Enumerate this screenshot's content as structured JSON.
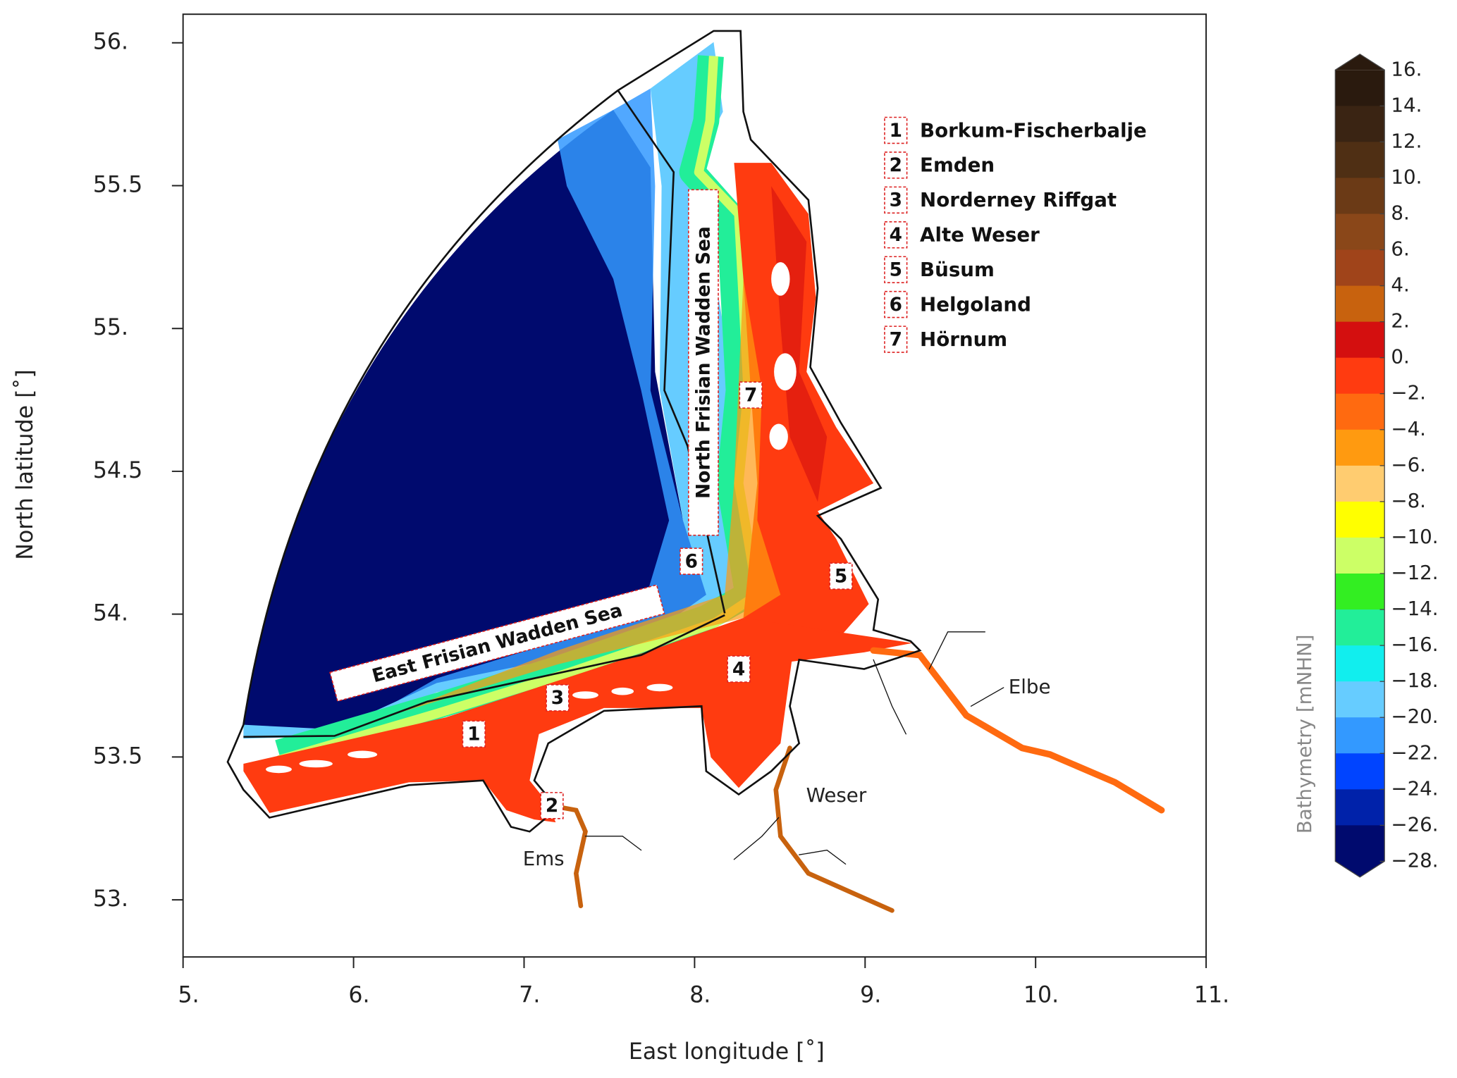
{
  "chart_data": {
    "type": "map",
    "xlabel": "East longitude [˚]",
    "ylabel": "North latitude [˚]",
    "xlim": [
      5,
      11
    ],
    "ylim": [
      52.8,
      56.1
    ],
    "xticks": [
      {
        "value": 5,
        "label": "5."
      },
      {
        "value": 6,
        "label": "6."
      },
      {
        "value": 7,
        "label": "7."
      },
      {
        "value": 8,
        "label": "8."
      },
      {
        "value": 9,
        "label": "9."
      },
      {
        "value": 10,
        "label": "10."
      },
      {
        "value": 11,
        "label": "11."
      }
    ],
    "yticks": [
      {
        "value": 53,
        "label": "53."
      },
      53.5,
      {
        "value": 54,
        "label": "54."
      },
      54.5,
      {
        "value": 55,
        "label": "55."
      },
      55.5,
      {
        "value": 56,
        "label": "56."
      }
    ],
    "stations": [
      {
        "number": "1",
        "name": "Borkum-Fischerbalje"
      },
      {
        "number": "2",
        "name": "Emden"
      },
      {
        "number": "3",
        "name": "Norderney Riffgat"
      },
      {
        "number": "4",
        "name": "Alte Weser"
      },
      {
        "number": "5",
        "name": "Büsum"
      },
      {
        "number": "6",
        "name": "Helgoland"
      },
      {
        "number": "7",
        "name": "Hörnum"
      }
    ],
    "regions": [
      "North Frisian Wadden Sea",
      "East Frisian Wadden Sea"
    ],
    "rivers": [
      "Elbe",
      "Weser",
      "Ems"
    ],
    "colorbar": {
      "label": "Bathymetry [mNHN]",
      "ticks": [
        {
          "value": 16,
          "label": "16."
        },
        {
          "value": 14,
          "label": "14."
        },
        {
          "value": 12,
          "label": "12."
        },
        {
          "value": 10,
          "label": "10."
        },
        {
          "value": 8,
          "label": "8."
        },
        {
          "value": 6,
          "label": "6."
        },
        {
          "value": 4,
          "label": "4."
        },
        {
          "value": 2,
          "label": "2."
        },
        {
          "value": 0,
          "label": "0."
        },
        {
          "value": -2,
          "label": "−2."
        },
        {
          "value": -4,
          "label": "−4."
        },
        {
          "value": -6,
          "label": "−6."
        },
        {
          "value": -8,
          "label": "−8."
        },
        {
          "value": -10,
          "label": "−10."
        },
        {
          "value": -12,
          "label": "−12."
        },
        {
          "value": -14,
          "label": "−14."
        },
        {
          "value": -16,
          "label": "−16."
        },
        {
          "value": -18,
          "label": "−18."
        },
        {
          "value": -20,
          "label": "−20."
        },
        {
          "value": -22,
          "label": "−22."
        },
        {
          "value": -24,
          "label": "−24."
        },
        {
          "value": -26,
          "label": "−26."
        },
        {
          "value": -28,
          "label": "−28."
        }
      ],
      "colors": [
        "#2a1a0e",
        "#3a2413",
        "#4f2f14",
        "#6b3a16",
        "#8a4719",
        "#a0441a",
        "#c8620e",
        "#d40f0f",
        "#ff3b10",
        "#ff6a10",
        "#ff9a10",
        "#ffcc70",
        "#ffff00",
        "#ccff66",
        "#33ee22",
        "#22ee99",
        "#11eeee",
        "#66ccff",
        "#3399ff",
        "#0044ff",
        "#0022aa",
        "#000a6e"
      ]
    }
  }
}
